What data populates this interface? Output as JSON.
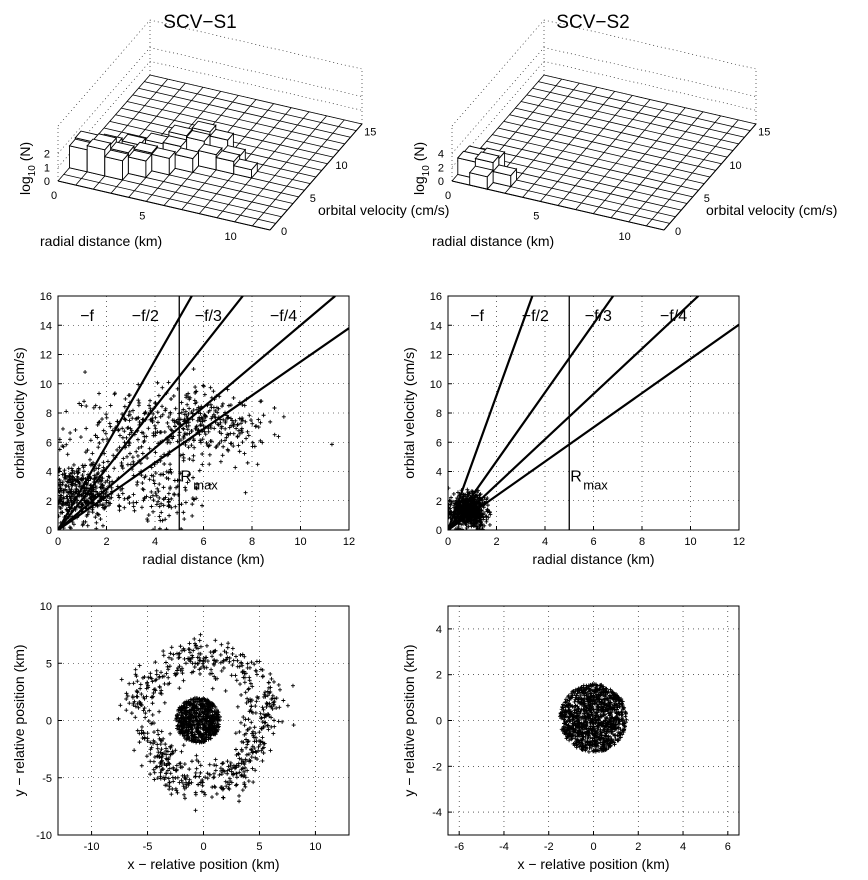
{
  "figure": {
    "columns": [
      {
        "title": "SCV−S1"
      },
      {
        "title": "SCV−S2"
      }
    ]
  },
  "chart_data": [
    {
      "type": "bar3d",
      "panel": "SCV-S1 histogram",
      "title": "SCV−S1",
      "xlabel": "radial distance (km)",
      "ylabel": "orbital velocity (cm/s)",
      "zlabel_main": "log",
      "zlabel_sub": "10",
      "zlabel_end": "(N)",
      "xlim": [
        0,
        12
      ],
      "ylim": [
        0,
        16
      ],
      "zlim": [
        0,
        4
      ],
      "xticks": [
        "0",
        "5",
        "10"
      ],
      "yticks": [
        "0",
        "5",
        "10",
        "15"
      ],
      "zticks": [
        "0",
        "1",
        "2"
      ],
      "bins": [
        {
          "r": 0,
          "v": 2,
          "n": 1.6
        },
        {
          "r": 0,
          "v": 3,
          "n": 1.7
        },
        {
          "r": 1,
          "v": 2,
          "n": 1.9
        },
        {
          "r": 1,
          "v": 3,
          "n": 1.8
        },
        {
          "r": 1,
          "v": 4,
          "n": 1.3
        },
        {
          "r": 2,
          "v": 2,
          "n": 1.4
        },
        {
          "r": 2,
          "v": 3,
          "n": 1.5
        },
        {
          "r": 2,
          "v": 5,
          "n": 1.1
        },
        {
          "r": 3,
          "v": 3,
          "n": 1.2
        },
        {
          "r": 3,
          "v": 4,
          "n": 1.3
        },
        {
          "r": 3,
          "v": 6,
          "n": 1.0
        },
        {
          "r": 4,
          "v": 4,
          "n": 1.2
        },
        {
          "r": 4,
          "v": 6,
          "n": 1.1
        },
        {
          "r": 4,
          "v": 7,
          "n": 1.4
        },
        {
          "r": 5,
          "v": 5,
          "n": 1.0
        },
        {
          "r": 5,
          "v": 7,
          "n": 1.3
        },
        {
          "r": 5,
          "v": 8,
          "n": 1.5
        },
        {
          "r": 6,
          "v": 6,
          "n": 1.1
        },
        {
          "r": 6,
          "v": 8,
          "n": 1.2
        },
        {
          "r": 7,
          "v": 6,
          "n": 0.9
        },
        {
          "r": 7,
          "v": 7,
          "n": 0.8
        },
        {
          "r": 8,
          "v": 6,
          "n": 0.6
        }
      ]
    },
    {
      "type": "bar3d",
      "panel": "SCV-S2 histogram",
      "title": "SCV−S2",
      "xlabel": "radial distance (km)",
      "ylabel": "orbital velocity (cm/s)",
      "zlabel_main": "log",
      "zlabel_sub": "10",
      "zlabel_end": "(N)",
      "xlim": [
        0,
        12
      ],
      "ylim": [
        0,
        16
      ],
      "zlim": [
        0,
        8
      ],
      "xticks": [
        "0",
        "5",
        "10"
      ],
      "yticks": [
        "0",
        "5",
        "10",
        "15"
      ],
      "zticks": [
        "0",
        "2",
        "4"
      ],
      "bins": [
        {
          "r": 0,
          "v": 1,
          "n": 2.4
        },
        {
          "r": 0,
          "v": 2,
          "n": 2.2
        },
        {
          "r": 1,
          "v": 0,
          "n": 1.8
        },
        {
          "r": 1,
          "v": 1,
          "n": 2.9
        },
        {
          "r": 1,
          "v": 2,
          "n": 2.5
        },
        {
          "r": 2,
          "v": 1,
          "n": 1.6
        }
      ]
    },
    {
      "type": "scatter",
      "panel": "SCV-S1 velocity vs radius",
      "xlabel": "radial distance (km)",
      "ylabel": "orbital velocity (cm/s)",
      "xlim": [
        0,
        12
      ],
      "ylim": [
        0,
        16
      ],
      "xticks": [
        0,
        2,
        4,
        6,
        8,
        10,
        12
      ],
      "yticks": [
        0,
        2,
        4,
        6,
        8,
        10,
        12,
        14,
        16
      ],
      "grid": true,
      "reference_lines": [
        {
          "label": "−f",
          "slope": 2.9
        },
        {
          "label": "−f/2",
          "slope": 2.1
        },
        {
          "label": "−f/3",
          "slope": 1.4
        },
        {
          "label": "−f/4",
          "slope": 1.15
        }
      ],
      "rmax": {
        "label": "R",
        "sub": "max",
        "x": 5
      },
      "point_groups": [
        {
          "cx": 1.0,
          "cy": 2.6,
          "sx": 0.7,
          "sy": 1.0,
          "count": 420
        },
        {
          "cx": 5.3,
          "cy": 7.6,
          "sx": 1.3,
          "sy": 1.1,
          "count": 260
        },
        {
          "cx": 3.2,
          "cy": 5.8,
          "sx": 1.5,
          "sy": 2.0,
          "count": 200
        },
        {
          "cx": 4.4,
          "cy": 2.2,
          "sx": 0.9,
          "sy": 1.0,
          "count": 90
        },
        {
          "cx": 7.0,
          "cy": 6.6,
          "sx": 0.9,
          "sy": 1.0,
          "count": 70
        }
      ]
    },
    {
      "type": "scatter",
      "panel": "SCV-S2 velocity vs radius",
      "xlabel": "radial distance (km)",
      "ylabel": "orbital velocity (cm/s)",
      "xlim": [
        0,
        12
      ],
      "ylim": [
        0,
        16
      ],
      "xticks": [
        0,
        2,
        4,
        6,
        8,
        10,
        12
      ],
      "yticks": [
        0,
        2,
        4,
        6,
        8,
        10,
        12,
        14,
        16
      ],
      "grid": true,
      "reference_lines": [
        {
          "label": "−f",
          "slope": 4.6
        },
        {
          "label": "−f/2",
          "slope": 2.35
        },
        {
          "label": "−f/3",
          "slope": 1.55
        },
        {
          "label": "−f/4",
          "slope": 1.17
        }
      ],
      "rmax": {
        "label": "R",
        "sub": "max",
        "x": 5
      },
      "point_groups": [
        {
          "cx": 0.85,
          "cy": 1.3,
          "sx": 0.35,
          "sy": 0.55,
          "count": 700
        }
      ]
    },
    {
      "type": "scatter",
      "panel": "SCV-S1 trajectories",
      "xlabel": "x − relative position (km)",
      "ylabel": "y − relative position (km)",
      "xlim": [
        -13,
        13
      ],
      "ylim": [
        -10,
        10
      ],
      "xticks": [
        -10,
        -5,
        0,
        5,
        10
      ],
      "yticks": [
        -10,
        -5,
        0,
        5,
        10
      ],
      "grid": true,
      "point_groups": [
        {
          "shape": "core",
          "cx": -0.5,
          "cy": 0,
          "r": 2.0,
          "count": 650
        },
        {
          "shape": "ring",
          "cx": 0,
          "cy": 0,
          "r": 5.5,
          "w": 1.8,
          "count": 700
        }
      ]
    },
    {
      "type": "scatter",
      "panel": "SCV-S2 trajectories",
      "xlabel": "x − relative position (km)",
      "ylabel": "y − relative position (km)",
      "xlim": [
        -6.5,
        6.5
      ],
      "ylim": [
        -5,
        5
      ],
      "xticks": [
        -6,
        -4,
        -2,
        0,
        2,
        4,
        6
      ],
      "yticks": [
        -4,
        -2,
        0,
        2,
        4
      ],
      "grid": true,
      "point_groups": [
        {
          "shape": "core",
          "cx": 0,
          "cy": 0.1,
          "r": 1.5,
          "count": 1100
        }
      ]
    }
  ]
}
